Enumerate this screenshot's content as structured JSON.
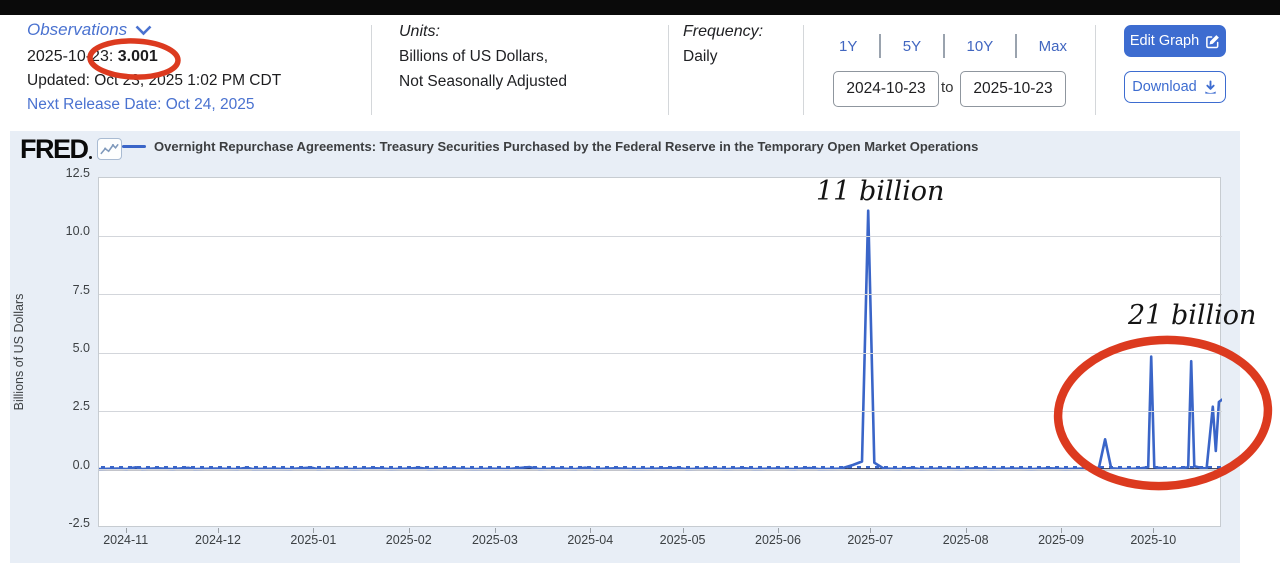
{
  "header": {
    "observations": {
      "label": "Observations",
      "latest_date": "2025-10-23:",
      "latest_value": "3.001",
      "updated": "Updated: Oct 23, 2025 1:02 PM CDT",
      "next_release": "Next Release Date: Oct 24, 2025"
    },
    "units": {
      "label": "Units:",
      "line1": "Billions of US Dollars,",
      "line2": "Not Seasonally Adjusted"
    },
    "frequency": {
      "label": "Frequency:",
      "value": "Daily"
    },
    "range_presets": {
      "y1": "1Y",
      "y5": "5Y",
      "y10": "10Y",
      "max": "Max"
    },
    "date_range": {
      "start": "2024-10-23",
      "separator": "to",
      "end": "2025-10-23"
    },
    "buttons": {
      "edit_graph": "Edit Graph",
      "download": "Download"
    }
  },
  "chart": {
    "logo": "FRED",
    "legend": "Overnight Repurchase Agreements: Treasury Securities Purchased by the Federal Reserve in the Temporary Open Market Operations",
    "ylabel": "Billions of US Dollars"
  },
  "annotations": {
    "spike1_label": "11 billion",
    "spike2_label": "21 billion",
    "circled_header_value": "3.001"
  },
  "colors": {
    "accent_blue": "#4a72d0",
    "button_blue": "#3d6cd0",
    "line_blue": "#3a65c8",
    "annotation_red": "#dc3a1f",
    "chart_bg": "#e8eef6"
  },
  "chart_data": {
    "type": "line",
    "title": "Overnight Repurchase Agreements: Treasury Securities Purchased by the Federal Reserve in the Temporary Open Market Operations",
    "xlabel": "",
    "ylabel": "Billions of US Dollars",
    "x_start": "2024-10-23",
    "x_end": "2025-10-23",
    "x_domain_days": 365,
    "ylim": [
      -2.5,
      12.5
    ],
    "grid": "horizontal",
    "legend_position": "top",
    "y_ticks": [
      {
        "label": "12.5",
        "value": 12.5
      },
      {
        "label": "10.0",
        "value": 10.0
      },
      {
        "label": "7.5",
        "value": 7.5
      },
      {
        "label": "5.0",
        "value": 5.0
      },
      {
        "label": "2.5",
        "value": 2.5
      },
      {
        "label": "0.0",
        "value": 0.0
      },
      {
        "label": "-2.5",
        "value": -2.5
      }
    ],
    "x_ticks": [
      {
        "label": "2024-11",
        "day": 9
      },
      {
        "label": "2024-12",
        "day": 39
      },
      {
        "label": "2025-01",
        "day": 70
      },
      {
        "label": "2025-02",
        "day": 101
      },
      {
        "label": "2025-03",
        "day": 129
      },
      {
        "label": "2025-04",
        "day": 160
      },
      {
        "label": "2025-05",
        "day": 190
      },
      {
        "label": "2025-06",
        "day": 221
      },
      {
        "label": "2025-07",
        "day": 251
      },
      {
        "label": "2025-08",
        "day": 282
      },
      {
        "label": "2025-09",
        "day": 313
      },
      {
        "label": "2025-10",
        "day": 343
      }
    ],
    "series": [
      {
        "name": "Overnight Repurchase Agreements: Treasury Securities Purchased by the Federal Reserve in the Temporary Open Market Operations",
        "color": "#3a65c8",
        "points_day_value": [
          [
            0,
            0.03
          ],
          [
            6,
            0.05
          ],
          [
            9,
            0.03
          ],
          [
            12,
            0.1
          ],
          [
            14,
            0.03
          ],
          [
            19,
            0.06
          ],
          [
            24,
            0.03
          ],
          [
            29,
            0.08
          ],
          [
            31,
            0.03
          ],
          [
            38,
            0.05
          ],
          [
            45,
            0.03
          ],
          [
            48,
            0.08
          ],
          [
            50,
            0.03
          ],
          [
            57,
            0.04
          ],
          [
            62,
            0.03
          ],
          [
            69,
            0.09
          ],
          [
            71,
            0.03
          ],
          [
            78,
            0.05
          ],
          [
            83,
            0.03
          ],
          [
            90,
            0.06
          ],
          [
            95,
            0.03
          ],
          [
            101,
            0.05
          ],
          [
            104,
            0.08
          ],
          [
            107,
            0.03
          ],
          [
            115,
            0.05
          ],
          [
            122,
            0.03
          ],
          [
            128,
            0.04
          ],
          [
            133,
            0.03
          ],
          [
            140,
            0.11
          ],
          [
            143,
            0.03
          ],
          [
            149,
            0.05
          ],
          [
            155,
            0.03
          ],
          [
            158,
            0.09
          ],
          [
            161,
            0.03
          ],
          [
            168,
            0.06
          ],
          [
            174,
            0.03
          ],
          [
            181,
            0.04
          ],
          [
            188,
            0.07
          ],
          [
            191,
            0.03
          ],
          [
            198,
            0.05
          ],
          [
            204,
            0.03
          ],
          [
            210,
            0.06
          ],
          [
            213,
            0.03
          ],
          [
            220,
            0.05
          ],
          [
            226,
            0.03
          ],
          [
            231,
            0.07
          ],
          [
            234,
            0.03
          ],
          [
            241,
            0.04
          ],
          [
            245,
            0.2
          ],
          [
            248,
            0.35
          ],
          [
            250,
            11.1
          ],
          [
            252,
            0.3
          ],
          [
            255,
            0.05
          ],
          [
            260,
            0.03
          ],
          [
            264,
            0.07
          ],
          [
            267,
            0.03
          ],
          [
            274,
            0.05
          ],
          [
            280,
            0.03
          ],
          [
            285,
            0.06
          ],
          [
            290,
            0.03
          ],
          [
            297,
            0.05
          ],
          [
            303,
            0.03
          ],
          [
            309,
            0.06
          ],
          [
            314,
            0.03
          ],
          [
            320,
            0.05
          ],
          [
            325,
            0.08
          ],
          [
            327,
            1.3
          ],
          [
            329,
            0.06
          ],
          [
            333,
            0.03
          ],
          [
            338,
            0.05
          ],
          [
            341,
            0.1
          ],
          [
            342,
            4.85
          ],
          [
            343,
            0.1
          ],
          [
            347,
            0.04
          ],
          [
            351,
            0.05
          ],
          [
            354,
            0.1
          ],
          [
            355,
            4.65
          ],
          [
            356,
            0.15
          ],
          [
            358,
            0.08
          ],
          [
            360,
            0.05
          ],
          [
            362,
            2.7
          ],
          [
            363,
            0.8
          ],
          [
            364,
            2.9
          ],
          [
            365,
            3.001
          ]
        ]
      }
    ],
    "annotations": [
      {
        "text": "11 billion",
        "near_date": "2025-06-30",
        "peak_value": 11.1
      },
      {
        "text": "21 billion",
        "circled_region": "2025-09 to 2025-10 spikes",
        "values": [
          1.3,
          4.85,
          4.65,
          2.7,
          2.9,
          3.001
        ]
      },
      {
        "text": "red circle around latest observation 3.001"
      }
    ]
  }
}
